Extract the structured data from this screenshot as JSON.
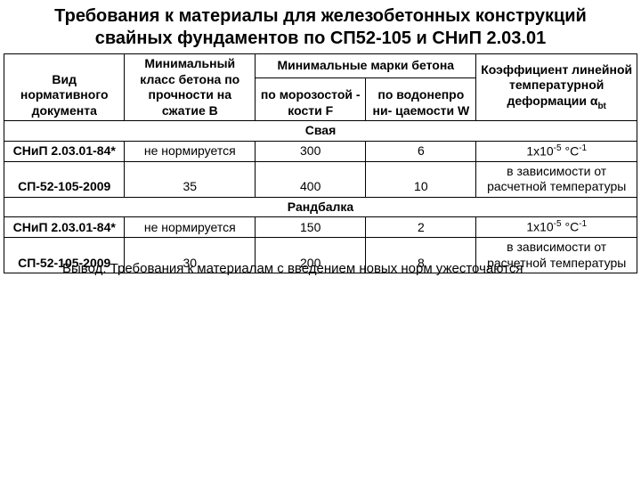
{
  "title": "Требования к материалы для железобетонных конструкций свайных фундаментов по СП52-105 и СНиП 2.03.01",
  "headers": {
    "doc": "Вид нормативного документа",
    "class": "Минимальный класс бетона по прочности на сжатие В",
    "marks_group": "Минимальные марки бетона",
    "frost": "по морозостой - кости F",
    "water": "по водонепро ни- цаемости W",
    "coef_pre": "Коэффициент линейной температурной деформации α",
    "coef_sub": "bt"
  },
  "sections": [
    {
      "label": "Свая",
      "rows": [
        {
          "doc": "СНиП 2.03.01-84*",
          "class": "не нормируется",
          "frost": "300",
          "water": "6",
          "coef_type": "value"
        },
        {
          "doc": "СП-52-105-2009",
          "class": "35",
          "frost": "400",
          "water": "10",
          "coef_type": "text",
          "coef_text": "в зависимости от расчетной температуры"
        }
      ]
    },
    {
      "label": "Рандбалка",
      "rows": [
        {
          "doc": "СНиП 2.03.01-84*",
          "class": "не нормируется",
          "frost": "150",
          "water": "2",
          "coef_type": "value"
        },
        {
          "doc": "СП-52-105-2009",
          "class": "30",
          "frost": "200",
          "water": "8",
          "coef_type": "text",
          "coef_text": "в зависимости от расчетной температуры"
        }
      ]
    }
  ],
  "coef_value": {
    "base": "1x10",
    "exp": "-5",
    "unit_pre": " °С",
    "unit_exp": "-1"
  },
  "footer": "Вывод: Требования к материалам с введением новых норм ужесточаются",
  "styling": {
    "text_color": "#000000",
    "background_color": "#ffffff",
    "border_color": "#000000",
    "title_fontsize": 20,
    "table_fontsize": 14,
    "footer_fontsize": 15,
    "font_family": "Arial"
  }
}
